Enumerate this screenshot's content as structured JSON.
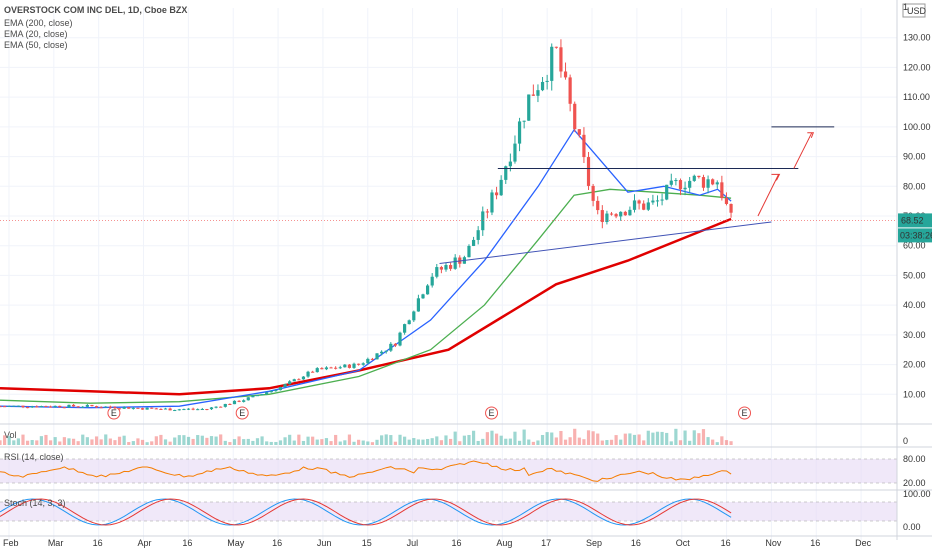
{
  "header": {
    "title": "OVERSTOCK COM INC DEL, 1D, Cboe BZX",
    "indicators": [
      "EMA (200, close)",
      "EMA (20, close)",
      "EMA (50, close)"
    ],
    "currency": "USD"
  },
  "panes": {
    "vol_label": "Vol",
    "rsi_label": "RSI (14, close)",
    "stoch_label": "Stoch (14, 3, 3)"
  },
  "price_axis": {
    "ticks": [
      "130.00",
      "120.00",
      "110.00",
      "100.00",
      "90.00",
      "80.00",
      "70.00",
      "60.00",
      "50.00",
      "40.00",
      "30.00",
      "20.00",
      "10.00"
    ],
    "last_price": "68.52",
    "countdown": "03:38:26",
    "top_label": "1"
  },
  "rsi_axis": {
    "ticks": [
      "80.00",
      "20.00"
    ]
  },
  "stoch_axis": {
    "ticks": [
      "100.00",
      "0.00"
    ]
  },
  "vol_axis": {
    "ticks": [
      "0"
    ]
  },
  "time_axis": [
    "Feb",
    "Mar",
    "16",
    "Apr",
    "16",
    "May",
    "16",
    "Jun",
    "15",
    "Jul",
    "16",
    "Aug",
    "17",
    "Sep",
    "16",
    "Oct",
    "16",
    "Nov",
    "16",
    "Dec"
  ],
  "earnings_marker": "E",
  "colors": {
    "up": "#26a69a",
    "down": "#ef5350",
    "ema200": "#e00000",
    "ema20": "#2962ff",
    "ema50": "#4caf50",
    "rsi": "#f57c00",
    "stoch_k": "#2196f3",
    "stoch_d": "#e53935",
    "band": "#e6d9f5"
  },
  "chart_data": {
    "type": "candlestick",
    "ylim": [
      0,
      140
    ],
    "months": [
      "Feb",
      "Mar",
      "Apr",
      "May",
      "Jun",
      "Jul",
      "Aug",
      "Sep",
      "Oct",
      "Nov",
      "Dec"
    ],
    "close_path": [
      [
        0,
        6
      ],
      [
        0.1,
        6
      ],
      [
        0.18,
        5
      ],
      [
        0.23,
        5
      ],
      [
        0.27,
        8
      ],
      [
        0.31,
        12
      ],
      [
        0.35,
        18
      ],
      [
        0.4,
        20
      ],
      [
        0.44,
        27
      ],
      [
        0.48,
        50
      ],
      [
        0.52,
        57
      ],
      [
        0.555,
        80
      ],
      [
        0.59,
        110
      ],
      [
        0.62,
        125
      ],
      [
        0.645,
        95
      ],
      [
        0.665,
        70
      ],
      [
        0.7,
        73
      ],
      [
        0.73,
        74
      ],
      [
        0.76,
        82
      ],
      [
        0.8,
        82
      ],
      [
        0.815,
        68.52
      ]
    ],
    "ema200": [
      [
        0,
        12
      ],
      [
        0.1,
        11
      ],
      [
        0.2,
        10
      ],
      [
        0.3,
        12
      ],
      [
        0.4,
        18
      ],
      [
        0.5,
        25
      ],
      [
        0.56,
        36
      ],
      [
        0.62,
        47
      ],
      [
        0.7,
        55
      ],
      [
        0.815,
        69
      ]
    ],
    "ema20": [
      [
        0,
        6
      ],
      [
        0.1,
        5.5
      ],
      [
        0.2,
        6
      ],
      [
        0.3,
        11
      ],
      [
        0.4,
        18
      ],
      [
        0.48,
        35
      ],
      [
        0.54,
        55
      ],
      [
        0.6,
        80
      ],
      [
        0.64,
        99
      ],
      [
        0.66,
        92
      ],
      [
        0.7,
        78
      ],
      [
        0.74,
        80
      ],
      [
        0.78,
        77
      ],
      [
        0.8,
        79
      ],
      [
        0.815,
        75
      ]
    ],
    "ema50": [
      [
        0,
        8
      ],
      [
        0.1,
        7
      ],
      [
        0.2,
        7.5
      ],
      [
        0.3,
        10
      ],
      [
        0.4,
        16
      ],
      [
        0.48,
        25
      ],
      [
        0.54,
        40
      ],
      [
        0.6,
        62
      ],
      [
        0.64,
        77
      ],
      [
        0.68,
        79
      ],
      [
        0.73,
        78
      ],
      [
        0.78,
        77
      ],
      [
        0.815,
        76
      ]
    ],
    "trendlines": [
      {
        "name": "resistance",
        "from": [
          0.555,
          86
        ],
        "to": [
          0.89,
          86
        ]
      },
      {
        "name": "support",
        "from": [
          0.49,
          54
        ],
        "to": [
          0.86,
          68
        ]
      }
    ],
    "target_line": {
      "from": [
        0.86,
        100
      ],
      "to": [
        0.93,
        100
      ]
    },
    "last_price": 68.52,
    "rsi_range": [
      20,
      80
    ],
    "stoch_range": [
      0,
      100
    ]
  }
}
